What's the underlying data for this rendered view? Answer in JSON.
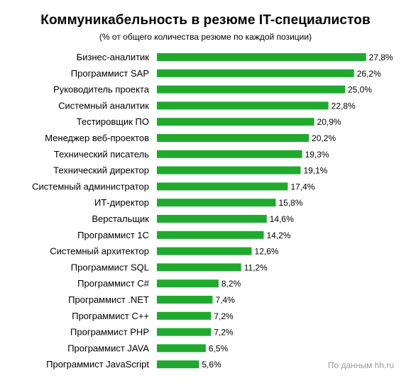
{
  "chart_data": {
    "type": "bar",
    "orientation": "horizontal",
    "title": "Коммуникабельность  в резюме IT-специалистов",
    "subtitle": "(% от общего количества резюме по  каждой позиции)",
    "categories": [
      "Бизнес-аналитик",
      "Программист SAP",
      "Руководитель проекта",
      "Системный аналитик",
      "Тестировщик ПО",
      "Менеджер веб-проектов",
      "Технический писатель",
      "Технический директор",
      "Системный администратор",
      "ИТ-директор",
      "Верстальщик",
      "Программист 1С",
      "Системный архитектор",
      "Программист SQL",
      "Программист С#",
      "Программист .NET",
      "Программист С++",
      "Программист PHP",
      "Программист JAVA",
      "Программист JavaScript"
    ],
    "values": [
      27.8,
      26.2,
      25.0,
      22.8,
      20.9,
      20.2,
      19.3,
      19.1,
      17.4,
      15.8,
      14.6,
      14.2,
      12.6,
      11.2,
      8.2,
      7.4,
      7.2,
      7.2,
      6.5,
      5.6
    ],
    "value_labels": [
      "27,8%",
      "26,2%",
      "25,0%",
      "22,8%",
      "20,9%",
      "20,2%",
      "19,3%",
      "19,1%",
      "17,4%",
      "15,8%",
      "14,6%",
      "14,2%",
      "12,6%",
      "11,2%",
      "8,2%",
      "7,4%",
      "7,2%",
      "7,2%",
      "6,5%",
      "5,6%"
    ],
    "bar_color": "#1faa2e",
    "xlabel": "",
    "ylabel": "",
    "grid": false,
    "legend": "none"
  },
  "source_note": "По данным hh.ru"
}
